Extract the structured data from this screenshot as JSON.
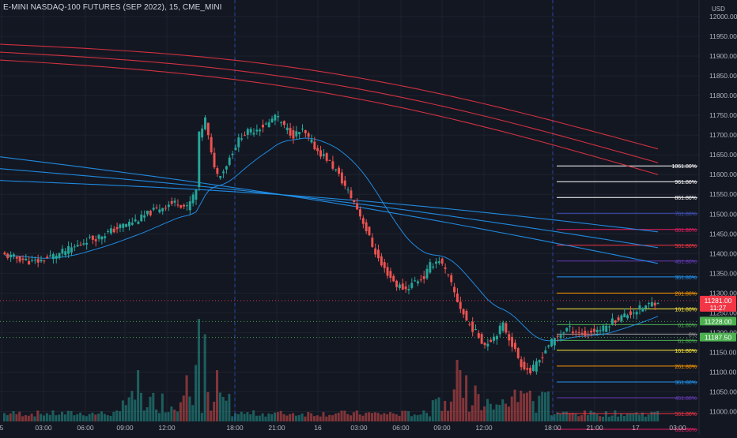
{
  "header": {
    "title": "E-MINI NASDAQ-100 FUTURES (SEP 2022), 15, CME_MINI",
    "currency": "USD"
  },
  "chart_data": {
    "type": "candlestick",
    "title": "E-MINI NASDAQ-100 FUTURES (SEP 2022), 15, CME_MINI",
    "ylabel": "USD",
    "ylim": [
      10975,
      12030
    ],
    "price_ticks": [
      "12000.00",
      "11950.00",
      "11900.00",
      "11850.00",
      "11800.00",
      "11750.00",
      "11700.00",
      "11650.00",
      "11600.00",
      "11550.00",
      "11500.00",
      "11450.00",
      "11400.00",
      "11350.00",
      "11300.00",
      "11250.00",
      "11200.00",
      "11150.00",
      "11100.00",
      "11050.00",
      "11000.00"
    ],
    "time_ticks": [
      "5",
      "03:00",
      "06:00",
      "09:00",
      "12:00",
      "18:00",
      "21:00",
      "16",
      "03:00",
      "06:00",
      "09:00",
      "12:00",
      "18:00",
      "21:00",
      "17",
      "03:00"
    ],
    "price_labels": [
      {
        "value": 11281.0,
        "text": "11281.00",
        "sub": "11:27",
        "color": "#f23645"
      },
      {
        "value": 11228.0,
        "text": "11228.00",
        "color": "#4caf50"
      },
      {
        "value": 11187.5,
        "text": "11187.50",
        "color": "#4caf50"
      }
    ],
    "fib_upper": [
      {
        "label": "1061.80%",
        "value": 11622,
        "color": "#ffffff"
      },
      {
        "label": "961.80%",
        "value": 11582,
        "color": "#ffffff"
      },
      {
        "label": "861.80%",
        "value": 11542,
        "color": "#ffffff"
      },
      {
        "label": "761.80%",
        "value": 11502,
        "color": "#3f51b5"
      },
      {
        "label": "661.80%",
        "value": 11461,
        "color": "#e91e63"
      },
      {
        "label": "561.80%",
        "value": 11421,
        "color": "#f23645"
      },
      {
        "label": "461.80%",
        "value": 11381,
        "color": "#673ab7"
      },
      {
        "label": "361.80%",
        "value": 11341,
        "color": "#2196f3"
      },
      {
        "label": "261.80%",
        "value": 11300,
        "color": "#ff9800"
      },
      {
        "label": "161.80%",
        "value": 11260,
        "color": "#ffeb3b"
      },
      {
        "label": "61.80%",
        "value": 11220,
        "color": "#4caf50"
      }
    ],
    "fib_lower": [
      {
        "label": "0%",
        "value": 11196,
        "color": "#9e9e9e"
      },
      {
        "label": "61.80%",
        "value": 11180,
        "color": "#4caf50"
      },
      {
        "label": "161.80%",
        "value": 11155,
        "color": "#ffeb3b"
      },
      {
        "label": "261.80%",
        "value": 11115,
        "color": "#ff9800"
      },
      {
        "label": "361.80%",
        "value": 11075,
        "color": "#2196f3"
      },
      {
        "label": "461.80%",
        "value": 11035,
        "color": "#673ab7"
      },
      {
        "label": "561.80%",
        "value": 10995,
        "color": "#f23645"
      },
      {
        "label": "661.80%",
        "value": 10955,
        "color": "#e91e63"
      }
    ],
    "close_path": [
      [
        0,
        11395
      ],
      [
        3,
        11390
      ],
      [
        6,
        11385
      ],
      [
        9,
        11378
      ],
      [
        12,
        11382
      ],
      [
        15,
        11392
      ],
      [
        18,
        11400
      ],
      [
        21,
        11410
      ],
      [
        24,
        11420
      ],
      [
        27,
        11435
      ],
      [
        30,
        11440
      ],
      [
        33,
        11450
      ],
      [
        36,
        11460
      ],
      [
        39,
        11472
      ],
      [
        42,
        11480
      ],
      [
        45,
        11490
      ],
      [
        48,
        11505
      ],
      [
        51,
        11515
      ],
      [
        54,
        11525
      ],
      [
        57,
        11530
      ],
      [
        60,
        11515
      ],
      [
        63,
        11560
      ],
      [
        64,
        11700
      ],
      [
        66,
        11740
      ],
      [
        68,
        11650
      ],
      [
        70,
        11600
      ],
      [
        72,
        11610
      ],
      [
        75,
        11660
      ],
      [
        78,
        11700
      ],
      [
        81,
        11710
      ],
      [
        84,
        11720
      ],
      [
        87,
        11730
      ],
      [
        89,
        11750
      ],
      [
        92,
        11720
      ],
      [
        95,
        11700
      ],
      [
        98,
        11710
      ],
      [
        100,
        11690
      ],
      [
        103,
        11660
      ],
      [
        106,
        11640
      ],
      [
        109,
        11610
      ],
      [
        112,
        11570
      ],
      [
        115,
        11530
      ],
      [
        118,
        11480
      ],
      [
        121,
        11420
      ],
      [
        124,
        11370
      ],
      [
        127,
        11340
      ],
      [
        129,
        11320
      ],
      [
        132,
        11310
      ],
      [
        135,
        11330
      ],
      [
        138,
        11340
      ],
      [
        140,
        11370
      ],
      [
        143,
        11385
      ],
      [
        146,
        11340
      ],
      [
        149,
        11280
      ],
      [
        152,
        11230
      ],
      [
        155,
        11200
      ],
      [
        158,
        11170
      ],
      [
        161,
        11190
      ],
      [
        164,
        11220
      ],
      [
        167,
        11170
      ],
      [
        170,
        11120
      ],
      [
        173,
        11100
      ],
      [
        176,
        11130
      ],
      [
        179,
        11170
      ],
      [
        182,
        11190
      ],
      [
        185,
        11210
      ],
      [
        188,
        11205
      ],
      [
        191,
        11195
      ],
      [
        194,
        11205
      ],
      [
        197,
        11210
      ],
      [
        200,
        11230
      ],
      [
        203,
        11240
      ],
      [
        206,
        11250
      ],
      [
        209,
        11260
      ],
      [
        212,
        11270
      ],
      [
        215,
        11281
      ]
    ],
    "bars": 216,
    "ma_red": [
      {
        "start": 11930,
        "end": 11665
      },
      {
        "start": 11910,
        "end": 11630
      },
      {
        "start": 11890,
        "end": 11600
      }
    ],
    "ma_blue": [
      {
        "start": 11645,
        "end": 11375
      },
      {
        "start": 11615,
        "end": 11415
      },
      {
        "start": 11585,
        "end": 11455
      }
    ]
  }
}
